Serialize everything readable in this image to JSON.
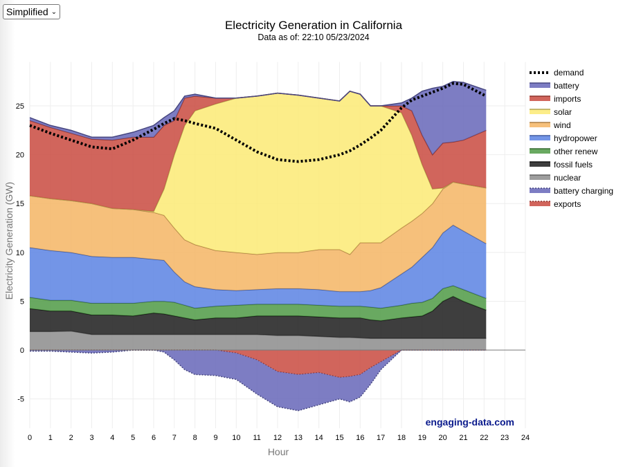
{
  "controls": {
    "view_select": "Simplified"
  },
  "watermark": "engaging-data.com",
  "chart_data": {
    "type": "area",
    "stacked": true,
    "title": "Electricity Generation in California",
    "subtitle": "Data as of: 22:10 05/23/2024",
    "xlabel": "Hour",
    "ylabel": "Electricity Generation (GW)",
    "xlim": [
      0,
      24
    ],
    "ylim": [
      -8,
      29.5
    ],
    "xticks": [
      0,
      1,
      2,
      3,
      4,
      5,
      6,
      7,
      8,
      9,
      10,
      11,
      12,
      13,
      14,
      15,
      16,
      17,
      18,
      19,
      20,
      21,
      22,
      23,
      24
    ],
    "yticks": [
      -5,
      0,
      5,
      10,
      15,
      20,
      25
    ],
    "grid": true,
    "legend_position": "right",
    "x": [
      0,
      1,
      2,
      3,
      4,
      5,
      6,
      6.5,
      7,
      7.5,
      8,
      9,
      10,
      11,
      12,
      13,
      14,
      15,
      15.5,
      16,
      16.5,
      17,
      18,
      18.5,
      19,
      19.5,
      20,
      20.5,
      21,
      22.1
    ],
    "series": [
      {
        "name": "nuclear",
        "color": "#8c8c8c",
        "values": [
          1.9,
          1.9,
          1.95,
          1.6,
          1.6,
          1.6,
          1.6,
          1.6,
          1.6,
          1.6,
          1.6,
          1.6,
          1.6,
          1.6,
          1.5,
          1.5,
          1.4,
          1.3,
          1.3,
          1.25,
          1.2,
          1.2,
          1.2,
          1.2,
          1.2,
          1.2,
          1.2,
          1.2,
          1.2,
          1.2
        ]
      },
      {
        "name": "fossil fuels",
        "color": "#1c1c1c",
        "values": [
          2.35,
          2.1,
          2.05,
          2.0,
          2.0,
          1.9,
          2.2,
          2.1,
          1.9,
          1.7,
          1.5,
          1.7,
          1.7,
          1.9,
          2.0,
          2.0,
          2.0,
          2.0,
          2.0,
          2.05,
          1.9,
          1.8,
          2.1,
          2.2,
          2.3,
          2.8,
          3.8,
          4.3,
          3.8,
          2.9
        ]
      },
      {
        "name": "other renew",
        "color": "#4f9a45",
        "values": [
          1.15,
          1.1,
          1.1,
          1.2,
          1.2,
          1.3,
          1.2,
          1.3,
          1.4,
          1.3,
          1.2,
          1.2,
          1.3,
          1.2,
          1.2,
          1.2,
          1.2,
          1.2,
          1.2,
          1.2,
          1.3,
          1.3,
          1.3,
          1.4,
          1.4,
          1.3,
          1.3,
          1.1,
          1.2,
          1.2
        ]
      },
      {
        "name": "hydropower",
        "color": "#5b82e3",
        "values": [
          5.1,
          5.1,
          4.9,
          4.8,
          4.7,
          4.7,
          4.3,
          4.2,
          3.1,
          2.4,
          2.2,
          1.7,
          1.5,
          1.5,
          1.6,
          1.6,
          1.6,
          1.5,
          1.5,
          1.5,
          1.7,
          2.1,
          3.2,
          3.7,
          4.6,
          5.2,
          5.7,
          6.2,
          6.0,
          5.6
        ]
      },
      {
        "name": "wind",
        "color": "#f4b564",
        "values": [
          5.3,
          5.3,
          5.3,
          5.4,
          5.0,
          4.9,
          4.8,
          4.6,
          4.5,
          4.3,
          4.3,
          4.0,
          3.9,
          3.6,
          3.7,
          3.7,
          4.1,
          4.3,
          3.8,
          5.0,
          4.9,
          4.6,
          4.7,
          4.7,
          4.5,
          4.5,
          4.5,
          4.4,
          4.8,
          5.7
        ]
      },
      {
        "name": "solar",
        "color": "#fbea74",
        "values": [
          0,
          0,
          0,
          0,
          0,
          0,
          0.1,
          2.7,
          7.5,
          11.7,
          13.7,
          15.0,
          15.8,
          16.2,
          16.3,
          16.1,
          15.5,
          15.2,
          16.7,
          15.2,
          14.0,
          14.0,
          11.8,
          8.8,
          5.0,
          1.5,
          0.1,
          0,
          0,
          0
        ]
      },
      {
        "name": "imports",
        "color": "#c94a40",
        "values": [
          7.7,
          7.3,
          6.9,
          6.6,
          7.0,
          7.4,
          7.6,
          6.5,
          3.5,
          2.8,
          1.5,
          0.6,
          0,
          0,
          0,
          0,
          0,
          0,
          0,
          0,
          0,
          0,
          0.7,
          2.5,
          3.0,
          3.5,
          4.6,
          4.1,
          4.5,
          5.9
        ]
      },
      {
        "name": "battery",
        "color": "#6666b8",
        "values": [
          0.3,
          0.2,
          0.3,
          0.2,
          0.3,
          0.5,
          1.2,
          0.8,
          1.0,
          0.2,
          0.2,
          0,
          0,
          0,
          0,
          0,
          0,
          0,
          0,
          0,
          0,
          0,
          0.3,
          1.3,
          4.5,
          6.8,
          5.8,
          6.2,
          5.9,
          4.1
        ]
      },
      {
        "name": "exports",
        "color": "#c94a40",
        "negative": true,
        "values": [
          0,
          0,
          0,
          0,
          0,
          0,
          0,
          0,
          0,
          0,
          0,
          0,
          -0.3,
          -1.0,
          -2.2,
          -2.5,
          -2.3,
          -2.8,
          -2.7,
          -2.5,
          -1.8,
          -1.2,
          0,
          0,
          0,
          0,
          0,
          0,
          0,
          0
        ]
      },
      {
        "name": "battery charging",
        "color": "#6666b8",
        "negative": true,
        "values": [
          -0.1,
          -0.1,
          -0.2,
          -0.3,
          -0.2,
          0,
          0,
          -0.2,
          -1.0,
          -2.0,
          -2.5,
          -2.6,
          -2.7,
          -3.5,
          -3.6,
          -3.7,
          -3.3,
          -2.2,
          -2.6,
          -2.3,
          -1.7,
          -0.8,
          0,
          0,
          0,
          0,
          0,
          0,
          0,
          0
        ]
      },
      {
        "name": "demand",
        "color": "#000000",
        "type": "line",
        "values": [
          23,
          22.2,
          21.5,
          20.8,
          20.6,
          21.5,
          22.6,
          23.2,
          23.7,
          23.5,
          23.2,
          22.7,
          21.5,
          20.3,
          19.5,
          19.3,
          19.5,
          20,
          20.4,
          21,
          21.7,
          22.5,
          24.8,
          25.6,
          26,
          26.4,
          26.8,
          27.3,
          27.2,
          26
        ]
      }
    ],
    "legend": [
      "demand",
      "battery",
      "imports",
      "solar",
      "wind",
      "hydropower",
      "other renew",
      "fossil fuels",
      "nuclear",
      "battery charging",
      "exports"
    ]
  }
}
